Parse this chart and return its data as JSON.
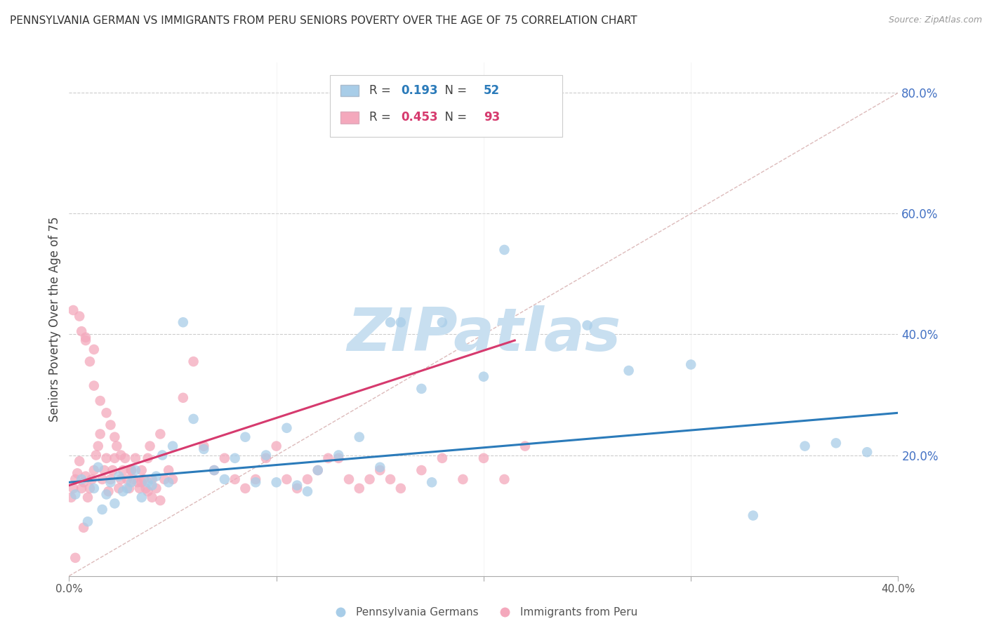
{
  "title": "PENNSYLVANIA GERMAN VS IMMIGRANTS FROM PERU SENIORS POVERTY OVER THE AGE OF 75 CORRELATION CHART",
  "source": "Source: ZipAtlas.com",
  "ylabel": "Seniors Poverty Over the Age of 75",
  "xlim": [
    0.0,
    0.4
  ],
  "ylim": [
    0.0,
    0.85
  ],
  "xticks": [
    0.0,
    0.1,
    0.2,
    0.3,
    0.4
  ],
  "xtick_labels": [
    "0.0%",
    "",
    "",
    "",
    "40.0%"
  ],
  "ytick_labels_right": [
    "20.0%",
    "40.0%",
    "60.0%",
    "80.0%"
  ],
  "ytick_values_right": [
    0.2,
    0.4,
    0.6,
    0.8
  ],
  "blue_R": "0.193",
  "blue_N": "52",
  "pink_R": "0.453",
  "pink_N": "93",
  "blue_color": "#a8cde8",
  "pink_color": "#f4a8bc",
  "blue_line_color": "#2b7bba",
  "pink_line_color": "#d63a6e",
  "legend_label_blue": "Pennsylvania Germans",
  "legend_label_pink": "Immigrants from Peru",
  "watermark": "ZIPatlas",
  "watermark_color": "#c8dff0",
  "blue_dots_x": [
    0.003,
    0.006,
    0.009,
    0.012,
    0.014,
    0.016,
    0.018,
    0.02,
    0.022,
    0.024,
    0.026,
    0.028,
    0.03,
    0.032,
    0.035,
    0.038,
    0.04,
    0.042,
    0.045,
    0.048,
    0.05,
    0.055,
    0.06,
    0.065,
    0.07,
    0.075,
    0.08,
    0.085,
    0.09,
    0.095,
    0.1,
    0.105,
    0.11,
    0.115,
    0.12,
    0.13,
    0.14,
    0.15,
    0.155,
    0.16,
    0.17,
    0.175,
    0.18,
    0.2,
    0.21,
    0.25,
    0.27,
    0.3,
    0.33,
    0.355,
    0.37,
    0.385
  ],
  "blue_dots_y": [
    0.135,
    0.16,
    0.09,
    0.145,
    0.18,
    0.11,
    0.135,
    0.155,
    0.12,
    0.165,
    0.14,
    0.145,
    0.155,
    0.175,
    0.13,
    0.155,
    0.15,
    0.165,
    0.2,
    0.155,
    0.215,
    0.42,
    0.26,
    0.21,
    0.175,
    0.16,
    0.195,
    0.23,
    0.155,
    0.2,
    0.155,
    0.245,
    0.15,
    0.14,
    0.175,
    0.2,
    0.23,
    0.18,
    0.42,
    0.42,
    0.31,
    0.155,
    0.42,
    0.33,
    0.54,
    0.415,
    0.34,
    0.35,
    0.1,
    0.215,
    0.22,
    0.205
  ],
  "pink_dots_x": [
    0.001,
    0.002,
    0.003,
    0.004,
    0.005,
    0.006,
    0.007,
    0.008,
    0.009,
    0.01,
    0.011,
    0.012,
    0.013,
    0.014,
    0.015,
    0.016,
    0.017,
    0.018,
    0.019,
    0.02,
    0.021,
    0.022,
    0.023,
    0.024,
    0.025,
    0.026,
    0.027,
    0.028,
    0.029,
    0.03,
    0.031,
    0.032,
    0.033,
    0.034,
    0.035,
    0.036,
    0.037,
    0.038,
    0.039,
    0.04,
    0.042,
    0.044,
    0.046,
    0.048,
    0.05,
    0.055,
    0.06,
    0.065,
    0.07,
    0.075,
    0.08,
    0.085,
    0.09,
    0.095,
    0.1,
    0.105,
    0.11,
    0.115,
    0.12,
    0.125,
    0.13,
    0.135,
    0.14,
    0.145,
    0.15,
    0.155,
    0.16,
    0.17,
    0.18,
    0.19,
    0.2,
    0.21,
    0.005,
    0.008,
    0.01,
    0.012,
    0.015,
    0.018,
    0.02,
    0.022,
    0.025,
    0.03,
    0.035,
    0.038,
    0.04,
    0.044,
    0.002,
    0.006,
    0.008,
    0.012,
    0.22,
    0.003,
    0.007
  ],
  "pink_dots_y": [
    0.13,
    0.145,
    0.16,
    0.17,
    0.19,
    0.145,
    0.155,
    0.165,
    0.13,
    0.145,
    0.16,
    0.175,
    0.2,
    0.215,
    0.235,
    0.16,
    0.175,
    0.195,
    0.14,
    0.16,
    0.175,
    0.195,
    0.215,
    0.145,
    0.16,
    0.175,
    0.195,
    0.16,
    0.145,
    0.175,
    0.16,
    0.195,
    0.155,
    0.145,
    0.175,
    0.16,
    0.145,
    0.195,
    0.215,
    0.16,
    0.145,
    0.235,
    0.16,
    0.175,
    0.16,
    0.295,
    0.355,
    0.215,
    0.175,
    0.195,
    0.16,
    0.145,
    0.16,
    0.195,
    0.215,
    0.16,
    0.145,
    0.16,
    0.175,
    0.195,
    0.195,
    0.16,
    0.145,
    0.16,
    0.175,
    0.16,
    0.145,
    0.175,
    0.195,
    0.16,
    0.195,
    0.16,
    0.43,
    0.395,
    0.355,
    0.315,
    0.29,
    0.27,
    0.25,
    0.23,
    0.2,
    0.175,
    0.155,
    0.14,
    0.13,
    0.125,
    0.44,
    0.405,
    0.39,
    0.375,
    0.215,
    0.03,
    0.08
  ],
  "blue_trend_x": [
    0.0,
    0.4
  ],
  "blue_trend_y": [
    0.155,
    0.27
  ],
  "pink_trend_x": [
    0.0,
    0.215
  ],
  "pink_trend_y": [
    0.15,
    0.39
  ],
  "ref_line_x": [
    0.0,
    0.4
  ],
  "ref_line_y": [
    0.0,
    0.8
  ]
}
